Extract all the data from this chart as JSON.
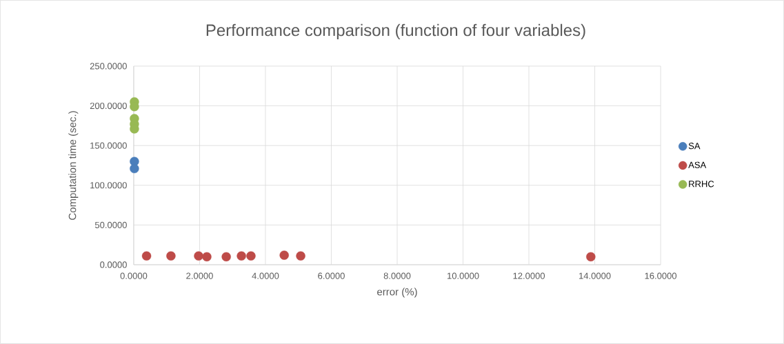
{
  "chart_data": {
    "type": "scatter",
    "title": "Performance comparison (function of four variables)",
    "xlabel": "error (%)",
    "ylabel": "Computation time (sec.)",
    "series": [
      {
        "name": "SA",
        "color": "#4a7ebb",
        "x": [
          0.02,
          0.02
        ],
        "values": [
          130,
          121
        ]
      },
      {
        "name": "ASA",
        "color": "#be4b48",
        "x": [
          0.39,
          1.13,
          1.97,
          2.22,
          2.81,
          3.27,
          3.56,
          4.57,
          5.07,
          13.88
        ],
        "values": [
          11,
          11,
          11,
          10,
          10,
          11,
          11,
          12,
          11,
          10
        ]
      },
      {
        "name": "RRHC",
        "color": "#98b954",
        "x": [
          0.02,
          0.02,
          0.02,
          0.02,
          0.02
        ],
        "values": [
          205,
          199,
          184,
          177,
          171
        ]
      }
    ],
    "xlim": [
      0,
      16
    ],
    "ylim": [
      0,
      250
    ],
    "xticks": [
      {
        "value": 0,
        "label": "0.0000"
      },
      {
        "value": 2,
        "label": "2.0000"
      },
      {
        "value": 4,
        "label": "4.0000"
      },
      {
        "value": 6,
        "label": "6.0000"
      },
      {
        "value": 8,
        "label": "8.0000"
      },
      {
        "value": 10,
        "label": "10.0000"
      },
      {
        "value": 12,
        "label": "12.0000"
      },
      {
        "value": 14,
        "label": "14.0000"
      },
      {
        "value": 16,
        "label": "16.0000"
      }
    ],
    "yticks": [
      {
        "value": 0,
        "label": "0.0000"
      },
      {
        "value": 50,
        "label": "50.0000"
      },
      {
        "value": 100,
        "label": "100.0000"
      },
      {
        "value": 150,
        "label": "150.0000"
      },
      {
        "value": 200,
        "label": "200.0000"
      },
      {
        "value": 250,
        "label": "250.0000"
      }
    ],
    "grid": true,
    "legend": "right"
  }
}
